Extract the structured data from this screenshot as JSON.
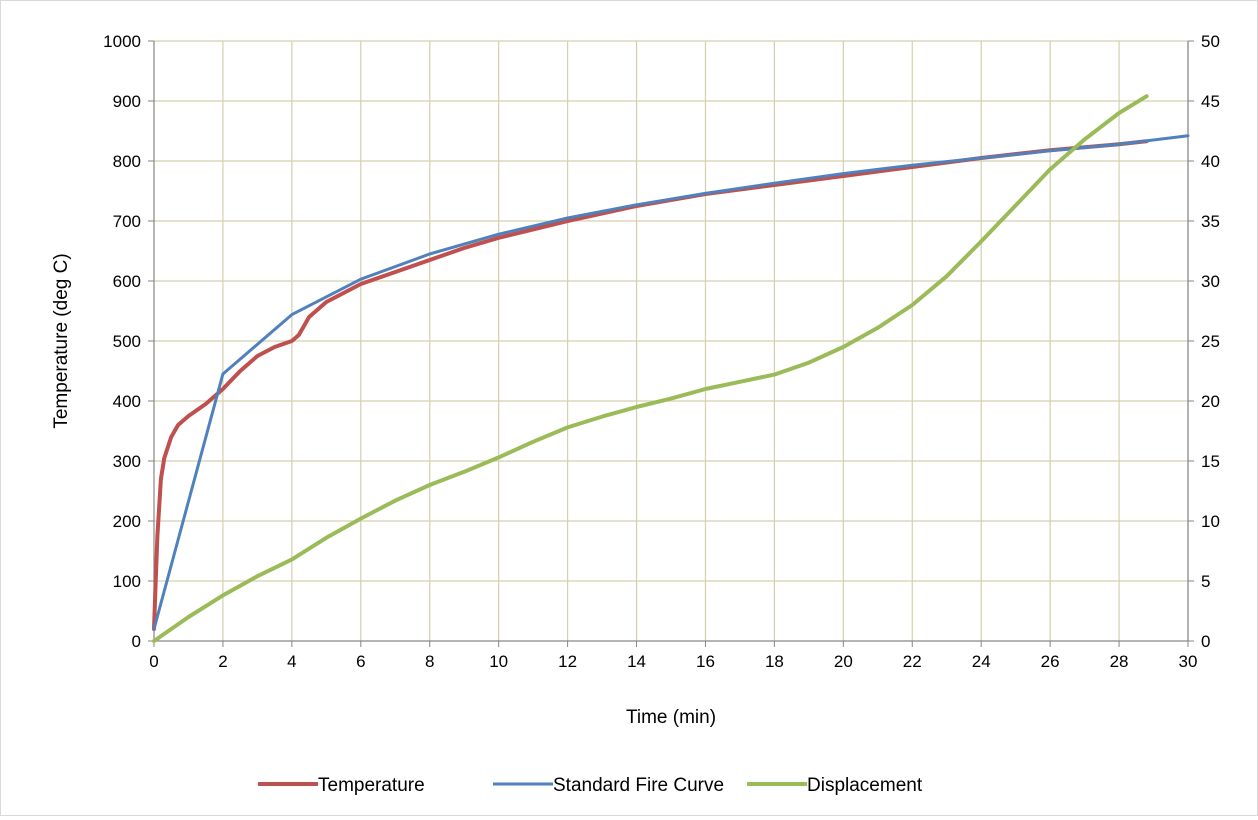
{
  "chart_data": {
    "type": "line",
    "xlabel": "Time (min)",
    "ylabel": "Temperature (deg C)",
    "y2label": "",
    "xlim": [
      0,
      30
    ],
    "ylim": [
      0,
      1000
    ],
    "y2lim": [
      0,
      50
    ],
    "x_ticks": [
      "0",
      "2",
      "4",
      "6",
      "8",
      "10",
      "12",
      "14",
      "16",
      "18",
      "20",
      "22",
      "24",
      "26",
      "28",
      "30"
    ],
    "y_ticks": [
      "0",
      "100",
      "200",
      "300",
      "400",
      "500",
      "600",
      "700",
      "800",
      "900",
      "1000"
    ],
    "y2_ticks": [
      "0",
      "5",
      "10",
      "15",
      "20",
      "25",
      "30",
      "35",
      "40",
      "45",
      "50"
    ],
    "grid": true,
    "legend_position": "bottom",
    "series": [
      {
        "name": "Temperature",
        "axis": "left",
        "color": "#c0504d",
        "x": [
          0,
          0.05,
          0.1,
          0.2,
          0.3,
          0.5,
          0.7,
          1.0,
          1.5,
          2.0,
          2.5,
          3.0,
          3.5,
          4.0,
          4.2,
          4.5,
          5.0,
          5.5,
          6.0,
          7.0,
          8.0,
          9.0,
          10.0,
          12.0,
          14.0,
          16.0,
          18.0,
          20.0,
          22.0,
          24.0,
          26.0,
          28.0,
          28.8
        ],
        "y": [
          20,
          100,
          175,
          270,
          305,
          340,
          360,
          375,
          395,
          420,
          450,
          475,
          490,
          500,
          510,
          540,
          565,
          580,
          595,
          615,
          635,
          655,
          672,
          700,
          725,
          745,
          760,
          775,
          790,
          805,
          818,
          828,
          833
        ]
      },
      {
        "name": "Standard Fire Curve",
        "axis": "left",
        "color": "#4f81bd",
        "x": [
          0,
          2,
          4,
          6,
          8,
          10,
          12,
          14,
          16,
          18,
          20,
          22,
          24,
          26,
          28,
          30
        ],
        "y": [
          20,
          445,
          544,
          603,
          645,
          678,
          705,
          727,
          746,
          763,
          779,
          793,
          805,
          817,
          828,
          842
        ]
      },
      {
        "name": "Displacement",
        "axis": "right",
        "color": "#9bbb59",
        "x": [
          0,
          1,
          2,
          3,
          4,
          5,
          6,
          7,
          8,
          9,
          10,
          11,
          12,
          13,
          14,
          15,
          16,
          17,
          18,
          19,
          20,
          21,
          22,
          23,
          24,
          25,
          26,
          27,
          28,
          28.8
        ],
        "y": [
          0,
          2,
          3.8,
          5.4,
          6.8,
          8.6,
          10.2,
          11.7,
          13,
          14.1,
          15.3,
          16.6,
          17.8,
          18.7,
          19.5,
          20.2,
          21,
          21.6,
          22.2,
          23.2,
          24.5,
          26.1,
          28,
          30.4,
          33.3,
          36.3,
          39.3,
          41.8,
          44,
          45.4
        ]
      }
    ]
  }
}
